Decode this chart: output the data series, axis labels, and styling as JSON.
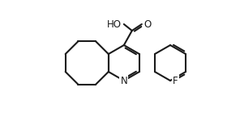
{
  "bg": "#ffffff",
  "lw": 1.5,
  "lw_double": 1.5,
  "color": "#1a1a1a",
  "font_size": 9,
  "atoms": {
    "N_label": "N",
    "F_label": "F",
    "O1_label": "O",
    "HO_label": "HO"
  }
}
